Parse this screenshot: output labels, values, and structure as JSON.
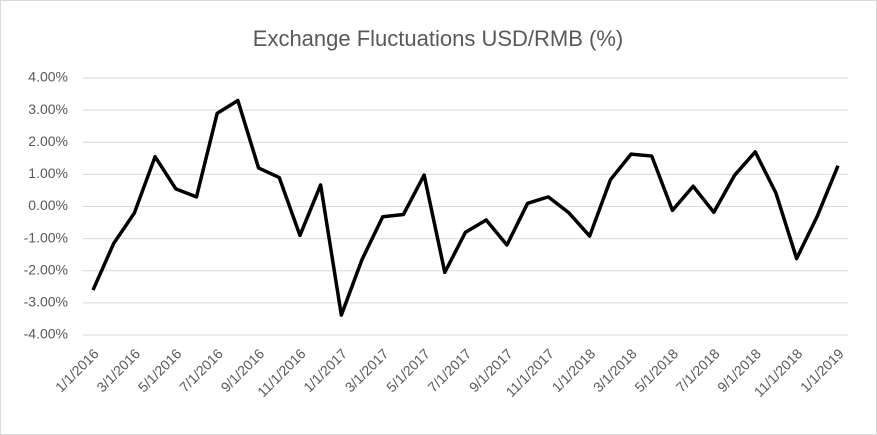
{
  "chart_data": {
    "type": "line",
    "title": "Exchange Fluctuations USD/RMB (%)",
    "categories": [
      "1/1/2016",
      null,
      "3/1/2016",
      null,
      "5/1/2016",
      null,
      "7/1/2016",
      null,
      "9/1/2016",
      null,
      "11/1/2016",
      null,
      "1/1/2017",
      null,
      "3/1/2017",
      null,
      "5/1/2017",
      null,
      "7/1/2017",
      null,
      "9/1/2017",
      null,
      "11/1/2017",
      null,
      "1/1/2018",
      null,
      "3/1/2018",
      null,
      "5/1/2018",
      null,
      "7/1/2018",
      null,
      "9/1/2018",
      null,
      "11/1/2018",
      null,
      "1/1/2019"
    ],
    "values": [
      -2.6,
      -1.15,
      -0.2,
      1.55,
      0.55,
      0.3,
      2.9,
      3.3,
      1.2,
      0.9,
      -0.9,
      0.67,
      -3.38,
      -1.65,
      -0.32,
      -0.25,
      0.98,
      -2.05,
      -0.8,
      -0.42,
      -1.2,
      0.1,
      0.3,
      -0.2,
      -0.92,
      0.83,
      1.63,
      1.57,
      -0.12,
      0.63,
      -0.18,
      0.97,
      1.7,
      0.42,
      -1.62,
      -0.3,
      1.27
    ],
    "color": "#000000",
    "ylim": [
      -4,
      4
    ],
    "yticks": [
      {
        "value": 4,
        "label": "4.00%"
      },
      {
        "value": 3,
        "label": "3.00%"
      },
      {
        "value": 2,
        "label": "2.00%"
      },
      {
        "value": 1,
        "label": "1.00%"
      },
      {
        "value": 0,
        "label": "0.00%"
      },
      {
        "value": -1,
        "label": "-1.00%"
      },
      {
        "value": -2,
        "label": "-2.00%"
      },
      {
        "value": -3,
        "label": "-3.00%"
      },
      {
        "value": -4,
        "label": "-4.00%"
      }
    ],
    "grid": true
  }
}
